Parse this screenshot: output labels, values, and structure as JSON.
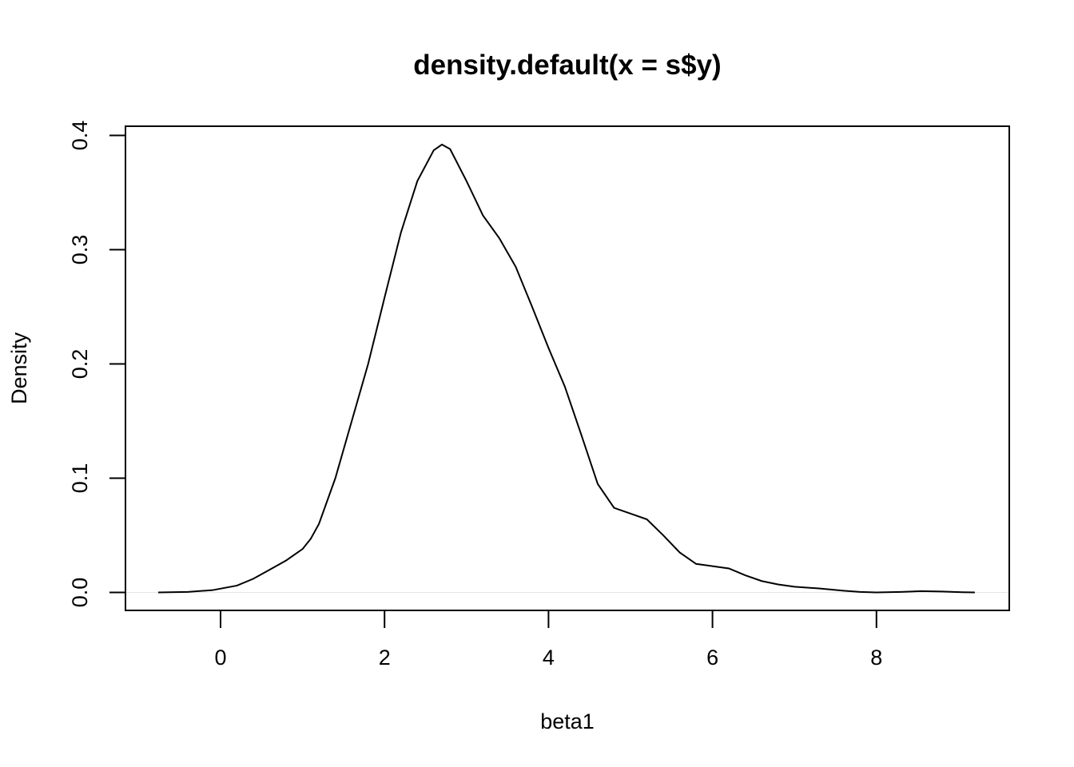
{
  "chart_data": {
    "type": "line",
    "title": "density.default(x = s$y)",
    "xlabel": "beta1",
    "ylabel": "Density",
    "xlim": [
      -1.16,
      9.62
    ],
    "ylim": [
      -0.0157,
      0.408
    ],
    "x_ticks": [
      0,
      2,
      4,
      6,
      8
    ],
    "y_ticks": [
      0.0,
      0.1,
      0.2,
      0.3,
      0.4
    ],
    "x_tick_labels": [
      "0",
      "2",
      "4",
      "6",
      "8"
    ],
    "y_tick_labels": [
      "0.0",
      "0.1",
      "0.2",
      "0.3",
      "0.4"
    ],
    "grid": false,
    "legend": "none",
    "series": [
      {
        "x": [
          -0.76,
          -0.4,
          -0.1,
          0.2,
          0.4,
          0.6,
          0.8,
          1.0,
          1.1,
          1.2,
          1.4,
          1.6,
          1.8,
          2.0,
          2.2,
          2.4,
          2.6,
          2.7,
          2.8,
          3.0,
          3.2,
          3.4,
          3.6,
          3.8,
          4.0,
          4.2,
          4.4,
          4.6,
          4.8,
          5.0,
          5.2,
          5.4,
          5.6,
          5.8,
          6.0,
          6.2,
          6.4,
          6.6,
          6.8,
          7.0,
          7.3,
          7.6,
          7.8,
          8.0,
          8.3,
          8.55,
          8.8,
          9.05,
          9.2
        ],
        "y": [
          0.0,
          0.0005,
          0.002,
          0.006,
          0.012,
          0.02,
          0.028,
          0.038,
          0.047,
          0.06,
          0.1,
          0.15,
          0.2,
          0.258,
          0.315,
          0.36,
          0.387,
          0.392,
          0.388,
          0.36,
          0.33,
          0.31,
          0.285,
          0.25,
          0.214,
          0.18,
          0.138,
          0.095,
          0.074,
          0.069,
          0.064,
          0.05,
          0.035,
          0.025,
          0.023,
          0.021,
          0.015,
          0.01,
          0.007,
          0.005,
          0.0035,
          0.0015,
          0.0005,
          0.0,
          0.0005,
          0.0012,
          0.0008,
          0.0002,
          0.0
        ]
      }
    ]
  }
}
